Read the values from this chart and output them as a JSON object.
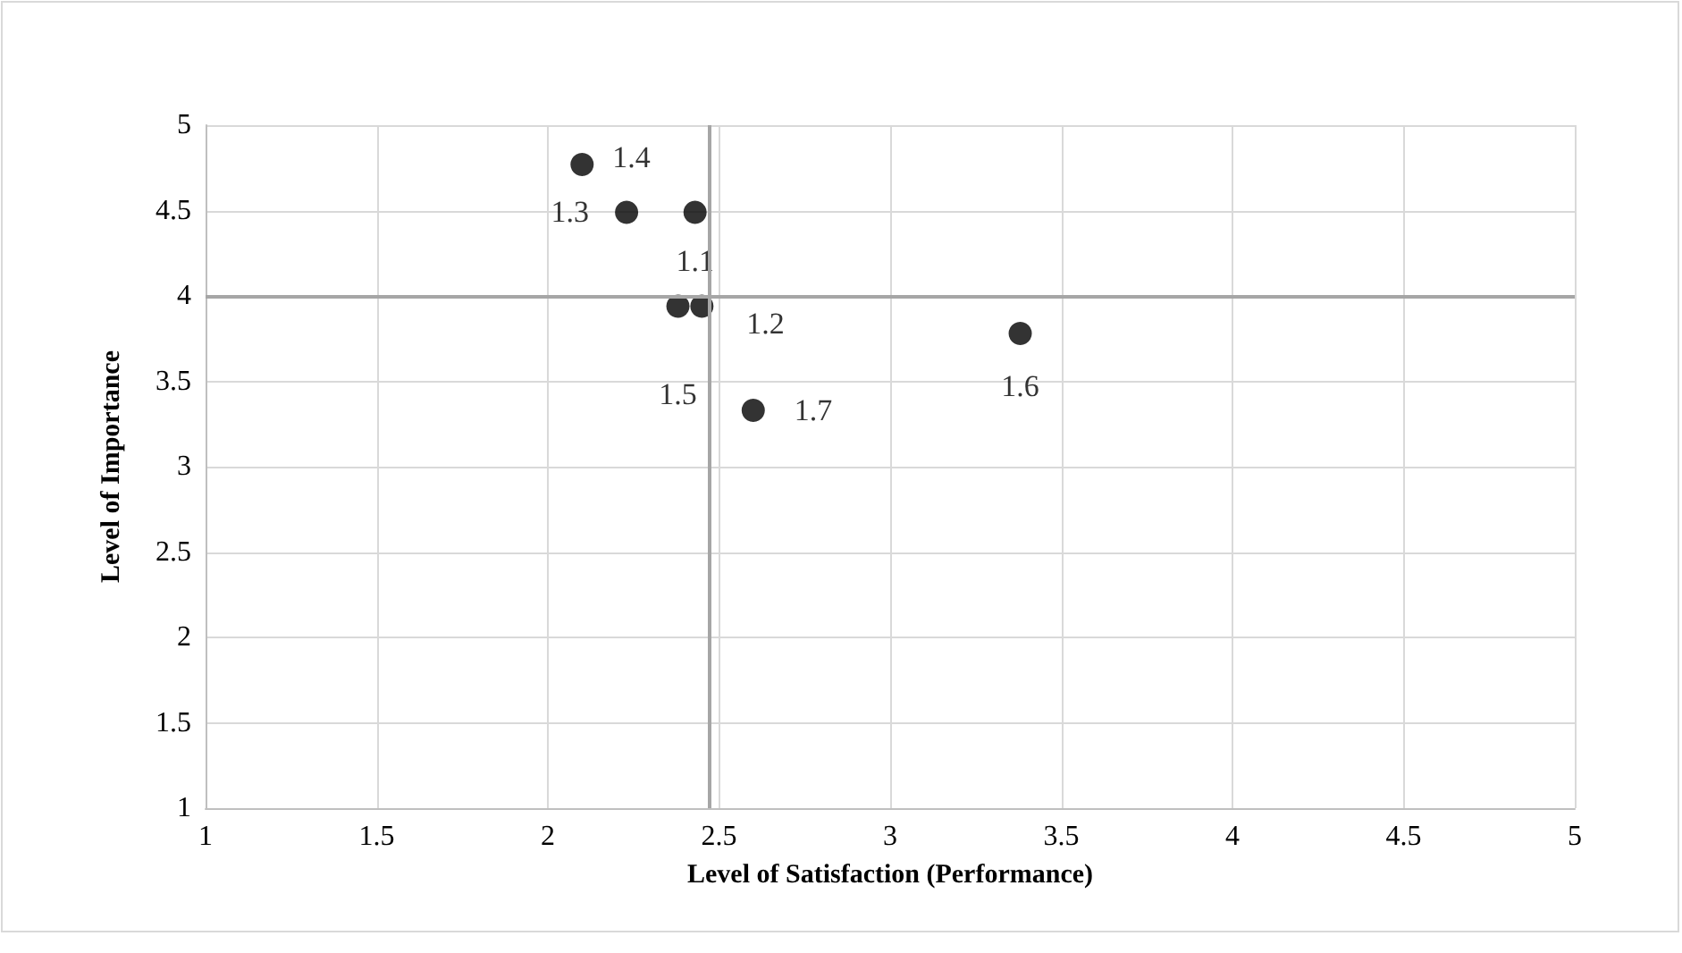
{
  "chart_data": {
    "type": "scatter",
    "xlabel": "Level of Satisfaction (Performance)",
    "ylabel": "Level of Importance",
    "x": [
      2.43,
      2.45,
      2.23,
      2.1,
      2.38,
      3.38,
      2.6
    ],
    "values": [
      4.49,
      3.94,
      4.49,
      4.77,
      3.94,
      3.78,
      3.33
    ],
    "annotations": [
      {
        "text": "1.1",
        "x": 2.43,
        "y": 4.49
      },
      {
        "text": "1.2",
        "x": 2.45,
        "y": 3.94
      },
      {
        "text": "1.3",
        "x": 2.23,
        "y": 4.49
      },
      {
        "text": "1.4",
        "x": 2.1,
        "y": 4.77
      },
      {
        "text": "1.5",
        "x": 2.38,
        "y": 3.94
      },
      {
        "text": "1.6",
        "x": 3.38,
        "y": 3.78
      },
      {
        "text": "1.7",
        "x": 2.6,
        "y": 3.33
      }
    ],
    "color": "#000000",
    "marker": "circle",
    "xlim": [
      1,
      5
    ],
    "xticks": [
      1,
      1.5,
      2,
      2.5,
      3,
      3.5,
      4,
      4.5,
      5
    ],
    "ylim": [
      1,
      5
    ],
    "yticks": [
      1,
      1.5,
      2,
      2.5,
      3,
      3.5,
      4,
      4.5,
      5
    ],
    "grid": true,
    "ref_lines": [
      {
        "axis": "x",
        "value": 2.47,
        "color": "#a6a6a6"
      },
      {
        "axis": "y",
        "value": 4,
        "color": "#a6a6a6"
      }
    ]
  }
}
